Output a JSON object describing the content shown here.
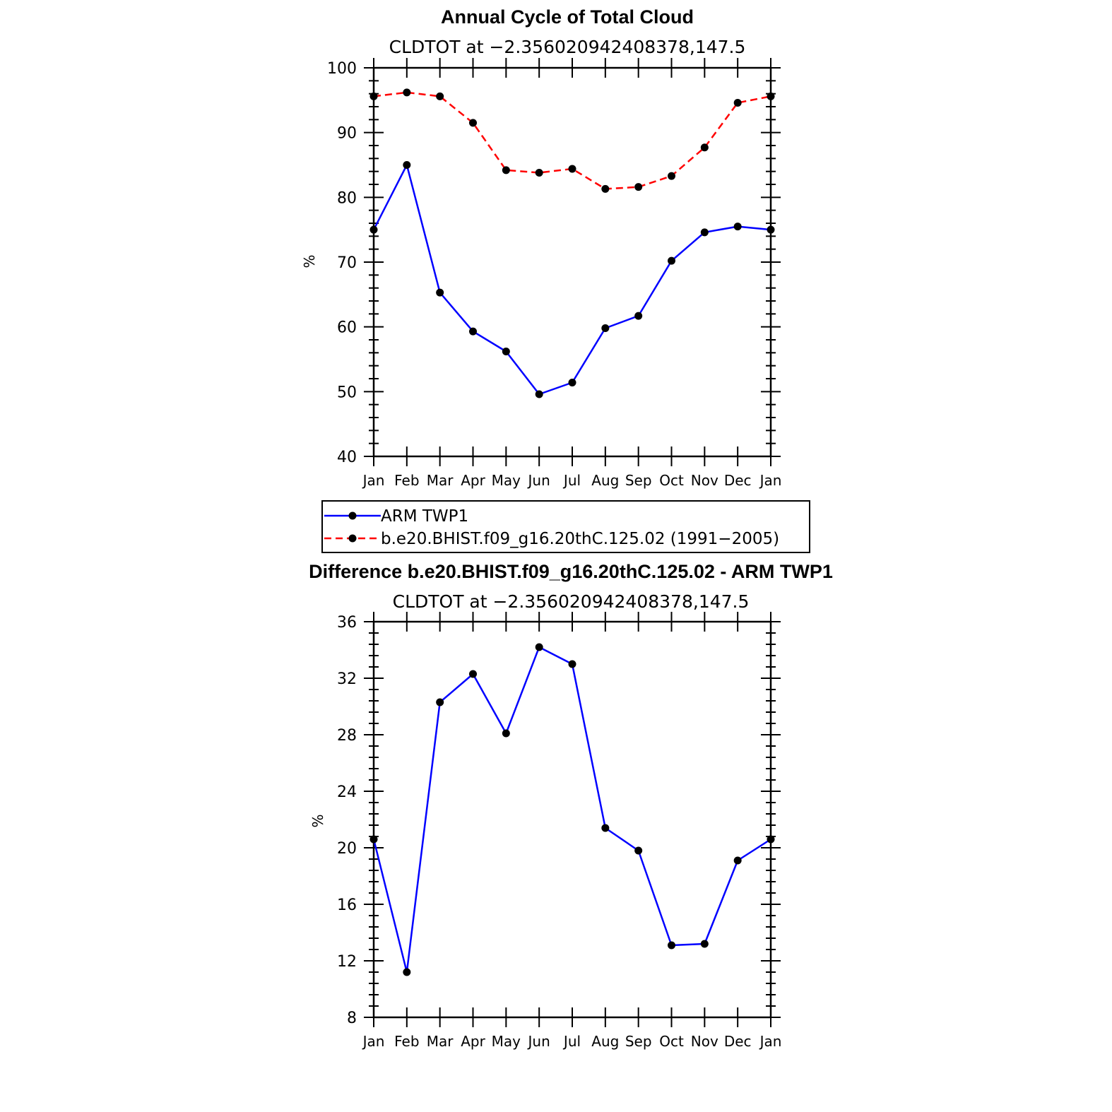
{
  "chart_data": [
    {
      "type": "line",
      "title": "Annual Cycle of Total Cloud",
      "subtitle": "CLDTOT at −2.356020942408378,147.5",
      "ylabel": "%",
      "ylim": [
        40,
        100
      ],
      "yticks": [
        "100",
        "90",
        "80",
        "70",
        "60",
        "50",
        "40"
      ],
      "ytick_values": [
        100,
        90,
        80,
        70,
        60,
        50,
        40
      ],
      "categories": [
        "Jan",
        "Feb",
        "Mar",
        "Apr",
        "May",
        "Jun",
        "Jul",
        "Aug",
        "Sep",
        "Oct",
        "Nov",
        "Dec",
        "Jan"
      ],
      "series": [
        {
          "name": "ARM TWP1",
          "color": "#0000ff",
          "style": "solid",
          "values": [
            75.0,
            85.0,
            65.3,
            59.3,
            56.2,
            49.6,
            51.4,
            59.8,
            61.7,
            70.2,
            74.6,
            75.5,
            75.0
          ]
        },
        {
          "name": "b.e20.BHIST.f09_g16.20thC.125.02 (1991−2005)",
          "color": "#ff0000",
          "style": "dashed",
          "values": [
            95.6,
            96.2,
            95.6,
            91.5,
            84.2,
            83.8,
            84.4,
            81.3,
            81.6,
            83.3,
            87.7,
            94.6,
            95.6
          ]
        }
      ],
      "legend": "below"
    },
    {
      "type": "line",
      "title": "Difference b.e20.BHIST.f09_g16.20thC.125.02 - ARM TWP1",
      "subtitle": "CLDTOT at −2.356020942408378,147.5",
      "ylabel": "%",
      "ylim": [
        8,
        36
      ],
      "yticks": [
        "36",
        "32",
        "28",
        "24",
        "20",
        "16",
        "12",
        "8"
      ],
      "ytick_values": [
        36,
        32,
        28,
        24,
        20,
        16,
        12,
        8
      ],
      "categories": [
        "Jan",
        "Feb",
        "Mar",
        "Apr",
        "May",
        "Jun",
        "Jul",
        "Aug",
        "Sep",
        "Oct",
        "Nov",
        "Dec",
        "Jan"
      ],
      "series": [
        {
          "color": "#0000ff",
          "style": "solid",
          "values": [
            20.6,
            11.2,
            30.3,
            32.3,
            28.1,
            34.2,
            33.0,
            21.4,
            19.8,
            13.1,
            13.2,
            19.1,
            20.6
          ]
        }
      ]
    }
  ]
}
